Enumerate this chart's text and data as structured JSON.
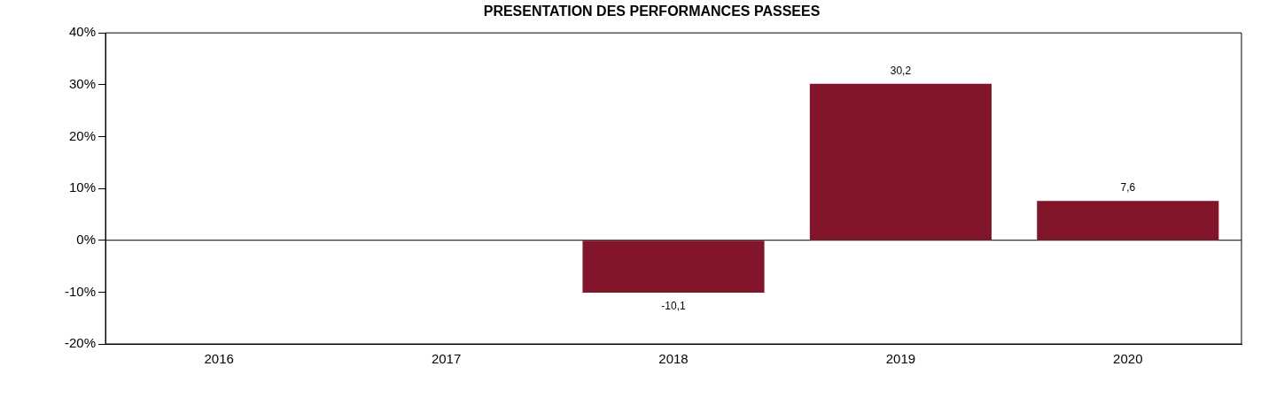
{
  "chart_data": {
    "type": "bar",
    "title": "PRESENTATION DES PERFORMANCES PASSEES",
    "categories": [
      "2016",
      "2017",
      "2018",
      "2019",
      "2020"
    ],
    "series": [
      {
        "color": "#82152a",
        "values": [
          null,
          null,
          -10.1,
          30.2,
          7.6
        ],
        "value_labels": [
          null,
          null,
          "-10,1",
          "30,2",
          "7,6"
        ]
      }
    ],
    "ylim": [
      -20,
      40
    ],
    "yticks": [
      {
        "value": -20,
        "label": "-20%"
      },
      {
        "value": -10,
        "label": "-10%"
      },
      {
        "value": 0,
        "label": "0%"
      },
      {
        "value": 10,
        "label": "10%"
      },
      {
        "value": 20,
        "label": "20%"
      },
      {
        "value": 30,
        "label": "30%"
      },
      {
        "value": 40,
        "label": "40%"
      }
    ],
    "ref_lines": [
      {
        "axis": "y",
        "value": 0,
        "color": "#000000"
      }
    ],
    "grid": false,
    "legend": false
  }
}
